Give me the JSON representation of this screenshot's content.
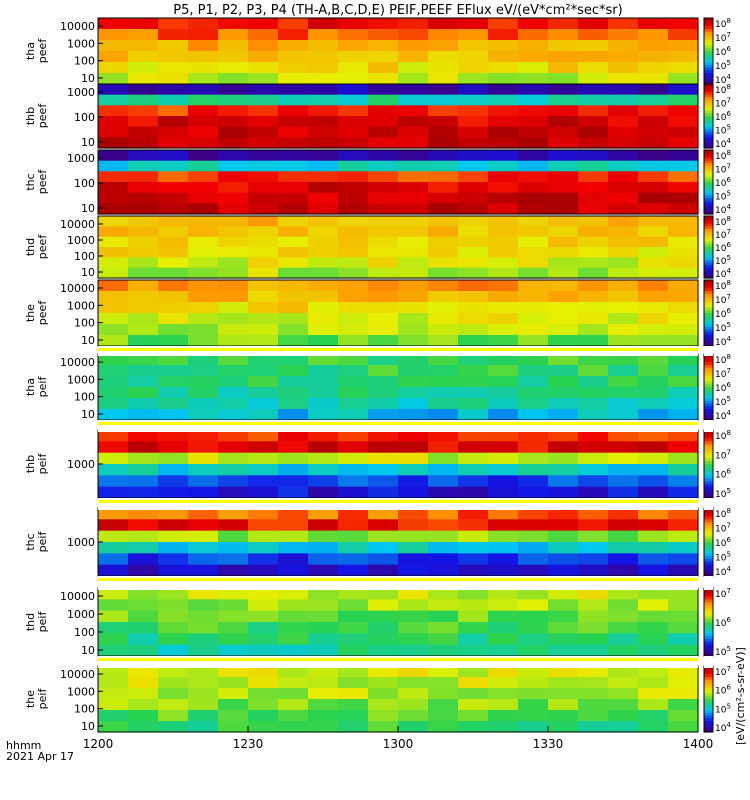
{
  "title": "P5, P1, P2, P3, P4 (TH-A,B,C,D,E) PEIF,PEEF EFlux eV/(eV*cm²*sec*sr)",
  "colorbar_label": "[eV/(cm²-s-sr-eV)]",
  "footer": {
    "time_label": "hhmm",
    "date_label": "2021 Apr 17"
  },
  "chart_data": {
    "type": "heatmap",
    "x_axis": {
      "range": [
        "1200",
        "1400"
      ],
      "ticks": [
        "1200",
        "1230",
        "1300",
        "1330",
        "1400"
      ]
    },
    "panels": [
      {
        "probe": "tha",
        "species": "peef",
        "yticks": [
          "10",
          "100",
          "1000",
          "10000"
        ],
        "cbar_exp": [
          4,
          5,
          6,
          7,
          8
        ],
        "profile": [
          0.6,
          0.66,
          0.7,
          0.74,
          0.82,
          0.9
        ]
      },
      {
        "probe": "thb",
        "species": "peef",
        "yticks": [
          "10",
          "100",
          "1000"
        ],
        "cbar_exp": [
          4,
          5,
          6,
          7,
          8
        ],
        "profile": [
          0.97,
          0.96,
          0.93,
          0.86,
          0.4,
          0.08
        ]
      },
      {
        "probe": "thc",
        "species": "peef",
        "yticks": [
          "10",
          "100",
          "1000"
        ],
        "cbar_exp": [
          4,
          5,
          6,
          7,
          8
        ],
        "profile": [
          0.97,
          0.96,
          0.93,
          0.86,
          0.35,
          0.06
        ]
      },
      {
        "probe": "thd",
        "species": "peef",
        "yticks": [
          "10",
          "100",
          "1000",
          "10000"
        ],
        "cbar_exp": [
          4,
          5,
          6,
          7,
          8
        ],
        "profile": [
          0.58,
          0.62,
          0.65,
          0.68,
          0.7,
          0.72
        ]
      },
      {
        "probe": "the",
        "species": "peef",
        "yticks": [
          "10",
          "100",
          "1000",
          "10000"
        ],
        "cbar_exp": [
          4,
          5,
          6,
          7,
          8
        ],
        "profile": [
          0.52,
          0.58,
          0.62,
          0.66,
          0.72,
          0.76
        ]
      },
      {
        "probe": "tha",
        "species": "peif",
        "yticks": [
          "10",
          "100",
          "1000",
          "10000"
        ],
        "cbar_exp": [
          4,
          5,
          6,
          7,
          8
        ],
        "profile": [
          0.32,
          0.38,
          0.42,
          0.44,
          0.46,
          0.48
        ]
      },
      {
        "probe": "thb",
        "species": "peif",
        "yticks": [
          "1000"
        ],
        "cbar_exp": [
          5,
          6,
          7,
          8
        ],
        "profile": [
          0.12,
          0.2,
          0.35,
          0.6,
          0.92,
          0.88
        ]
      },
      {
        "probe": "thc",
        "species": "peif",
        "yticks": [
          "1000"
        ],
        "cbar_exp": [
          4,
          5,
          6,
          7,
          8
        ],
        "profile": [
          0.1,
          0.18,
          0.35,
          0.55,
          0.9,
          0.82
        ]
      },
      {
        "probe": "thd",
        "species": "peif",
        "yticks": [
          "10",
          "100",
          "1000",
          "10000"
        ],
        "cbar_exp": [
          5,
          6,
          7
        ],
        "profile": [
          0.4,
          0.44,
          0.48,
          0.52,
          0.56,
          0.6
        ]
      },
      {
        "probe": "the",
        "species": "peif",
        "yticks": [
          "10",
          "100",
          "1000",
          "10000"
        ],
        "cbar_exp": [
          4,
          5,
          6,
          7
        ],
        "profile": [
          0.46,
          0.5,
          0.54,
          0.58,
          0.6,
          0.62
        ]
      }
    ]
  }
}
